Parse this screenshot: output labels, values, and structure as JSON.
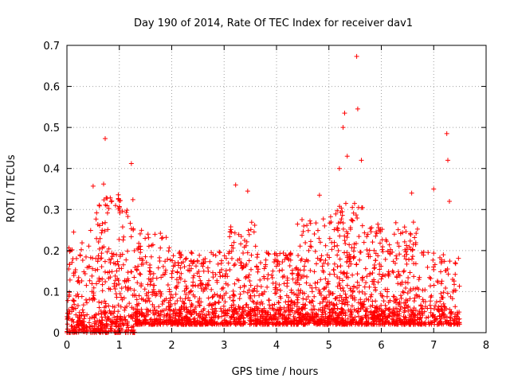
{
  "chart_data": {
    "type": "scatter",
    "title": "Day 190 of 2014, Rate Of TEC Index for receiver dav1",
    "xlabel": "GPS time / hours",
    "ylabel": "ROTI / TECUs",
    "xlim": [
      0,
      8
    ],
    "ylim": [
      0,
      0.7
    ],
    "x_ticks": [
      0,
      1,
      2,
      3,
      4,
      5,
      6,
      7,
      8
    ],
    "y_ticks": [
      0,
      0.1,
      0.2,
      0.3,
      0.4,
      0.5,
      0.6,
      0.7
    ],
    "grid": true,
    "marker": "+",
    "series_color": "#ff0000",
    "notable_points": [
      {
        "x": 0.73,
        "y": 0.473
      },
      {
        "x": 1.23,
        "y": 0.412
      },
      {
        "x": 0.5,
        "y": 0.357
      },
      {
        "x": 0.7,
        "y": 0.362
      },
      {
        "x": 0.98,
        "y": 0.336
      },
      {
        "x": 3.22,
        "y": 0.36
      },
      {
        "x": 3.45,
        "y": 0.345
      },
      {
        "x": 4.82,
        "y": 0.335
      },
      {
        "x": 5.2,
        "y": 0.4
      },
      {
        "x": 5.27,
        "y": 0.5
      },
      {
        "x": 5.3,
        "y": 0.535
      },
      {
        "x": 5.53,
        "y": 0.673
      },
      {
        "x": 5.55,
        "y": 0.545
      },
      {
        "x": 5.35,
        "y": 0.43
      },
      {
        "x": 5.62,
        "y": 0.42
      },
      {
        "x": 6.58,
        "y": 0.34
      },
      {
        "x": 7.0,
        "y": 0.35
      },
      {
        "x": 7.25,
        "y": 0.485
      },
      {
        "x": 7.27,
        "y": 0.42
      },
      {
        "x": 7.3,
        "y": 0.32
      }
    ],
    "cluster_shape": [
      {
        "x0": 0.0,
        "x1": 0.5,
        "low": 0.0,
        "high": 0.25,
        "density": 0.8
      },
      {
        "x0": 0.5,
        "x1": 1.3,
        "low": 0.0,
        "high": 0.33,
        "density": 1.0
      },
      {
        "x0": 1.3,
        "x1": 2.0,
        "low": 0.02,
        "high": 0.25,
        "density": 0.9
      },
      {
        "x0": 2.0,
        "x1": 3.1,
        "low": 0.02,
        "high": 0.2,
        "density": 0.9
      },
      {
        "x0": 3.1,
        "x1": 3.6,
        "low": 0.02,
        "high": 0.27,
        "density": 0.9
      },
      {
        "x0": 3.6,
        "x1": 4.4,
        "low": 0.02,
        "high": 0.2,
        "density": 0.9
      },
      {
        "x0": 4.4,
        "x1": 5.0,
        "low": 0.02,
        "high": 0.28,
        "density": 1.0
      },
      {
        "x0": 5.0,
        "x1": 5.7,
        "low": 0.02,
        "high": 0.32,
        "density": 1.1
      },
      {
        "x0": 5.7,
        "x1": 6.8,
        "low": 0.02,
        "high": 0.27,
        "density": 1.0
      },
      {
        "x0": 6.8,
        "x1": 7.5,
        "low": 0.02,
        "high": 0.2,
        "density": 0.6
      }
    ],
    "generated_points_note": "Dense cloud of ~3000 '+' markers from 0 to 7.5 hours, mostly between 0.01 and 0.2 TECU/min"
  }
}
